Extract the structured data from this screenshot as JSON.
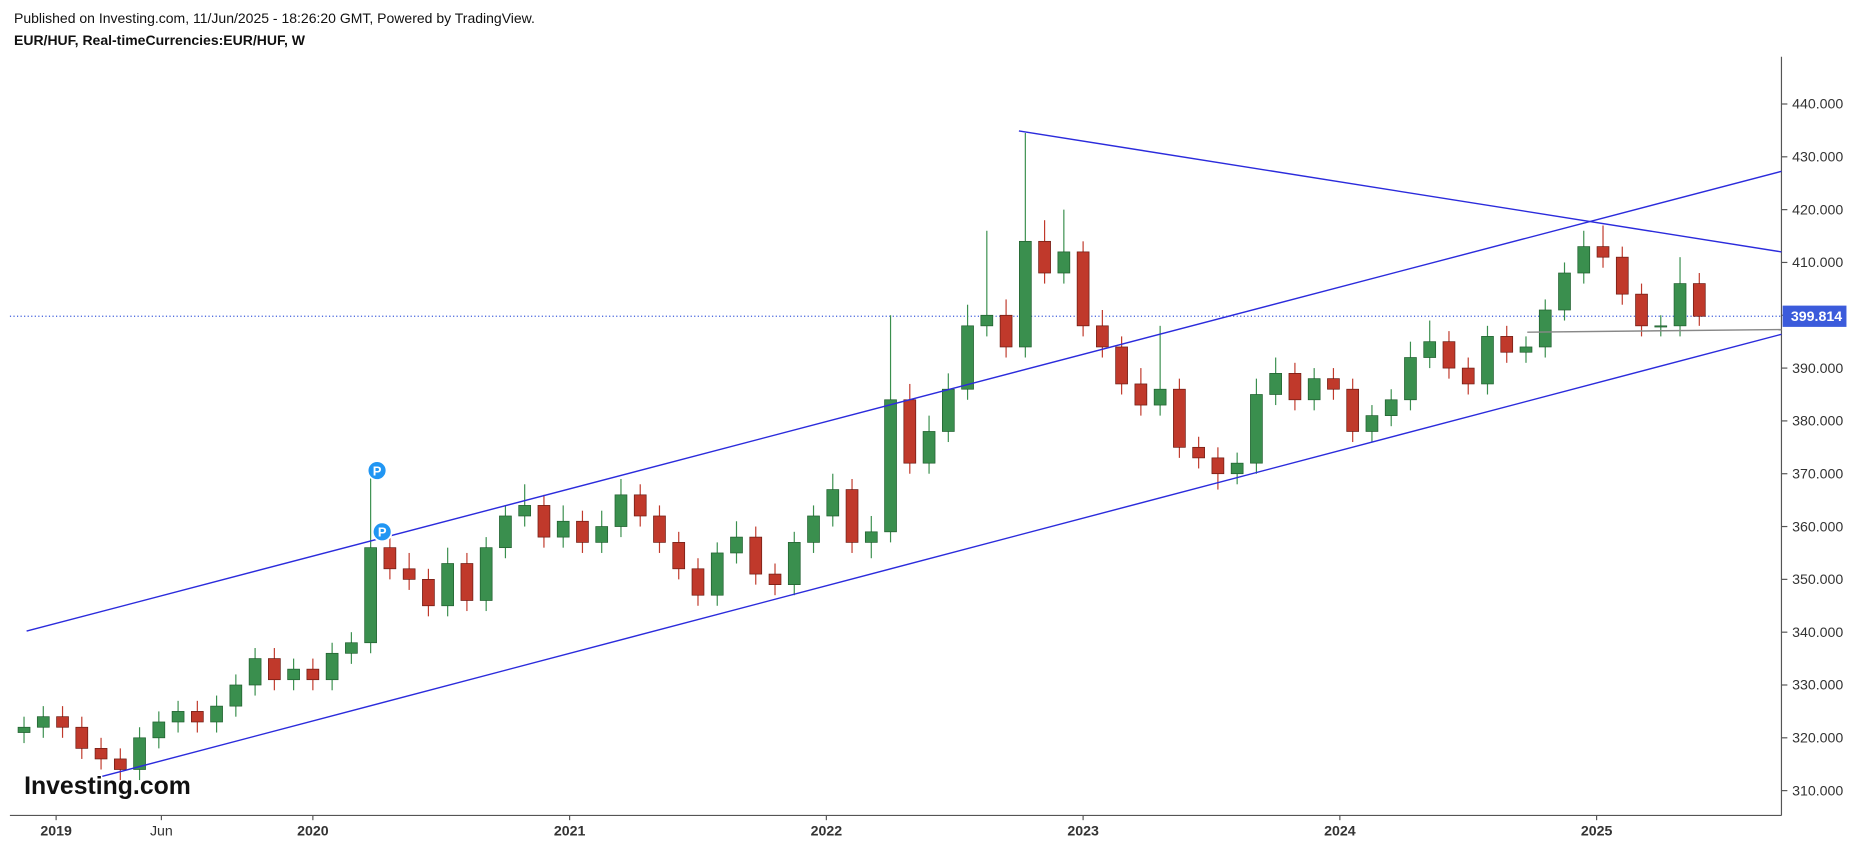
{
  "header": {
    "published": "Published on Investing.com, 11/Jun/2025 - 18:26:20 GMT, Powered by TradingView.",
    "symbol": "EUR/HUF, Real-timeCurrencies:EUR/HUF, W"
  },
  "logo": "Investing.com",
  "chart_data": {
    "type": "candlestick",
    "x": [
      2018.875,
      2018.95,
      2019.025,
      2019.1,
      2019.175,
      2019.25,
      2019.325,
      2019.4,
      2019.475,
      2019.55,
      2019.625,
      2019.7,
      2019.775,
      2019.85,
      2019.925,
      2020.0,
      2020.075,
      2020.15,
      2020.225,
      2020.3,
      2020.375,
      2020.45,
      2020.525,
      2020.6,
      2020.675,
      2020.75,
      2020.825,
      2020.9,
      2020.975,
      2021.05,
      2021.125,
      2021.2,
      2021.275,
      2021.35,
      2021.425,
      2021.5,
      2021.575,
      2021.65,
      2021.725,
      2021.8,
      2021.875,
      2021.95,
      2022.025,
      2022.1,
      2022.175,
      2022.25,
      2022.325,
      2022.4,
      2022.475,
      2022.55,
      2022.625,
      2022.7,
      2022.775,
      2022.85,
      2022.925,
      2023.0,
      2023.075,
      2023.15,
      2023.225,
      2023.3,
      2023.375,
      2023.45,
      2023.525,
      2023.6,
      2023.675,
      2023.75,
      2023.825,
      2023.9,
      2023.975,
      2024.05,
      2024.125,
      2024.2,
      2024.275,
      2024.35,
      2024.425,
      2024.5,
      2024.575,
      2024.65,
      2024.725,
      2024.8,
      2024.875,
      2024.95,
      2025.025,
      2025.1,
      2025.175,
      2025.25,
      2025.325,
      2025.4
    ],
    "open": [
      321,
      322,
      324,
      322,
      318,
      316,
      314,
      320,
      323,
      325,
      323,
      326,
      330,
      335,
      331,
      333,
      331,
      336,
      338,
      356,
      352,
      350,
      345,
      353,
      346,
      356,
      362,
      364,
      358,
      361,
      357,
      360,
      366,
      362,
      357,
      352,
      347,
      355,
      358,
      351,
      349,
      357,
      362,
      367,
      357,
      359,
      384,
      372,
      378,
      386,
      398,
      400,
      394,
      414,
      408,
      412,
      398,
      394,
      387,
      383,
      386,
      375,
      373,
      370,
      372,
      385,
      389,
      384,
      388,
      386,
      378,
      381,
      384,
      392,
      395,
      390,
      387,
      396,
      393,
      394,
      401,
      408,
      413,
      411,
      404,
      398,
      398,
      406
    ],
    "high": [
      324,
      326,
      326,
      324,
      320,
      318,
      322,
      325,
      327,
      327,
      328,
      332,
      337,
      337,
      335,
      335,
      338,
      340,
      370,
      359,
      355,
      352,
      356,
      355,
      358,
      364,
      368,
      366,
      364,
      363,
      363,
      369,
      368,
      364,
      359,
      354,
      357,
      361,
      360,
      353,
      359,
      364,
      370,
      369,
      362,
      400,
      387,
      381,
      389,
      402,
      416,
      403,
      434.5,
      418,
      420,
      414,
      401,
      396,
      390,
      398,
      388,
      377,
      375,
      374,
      388,
      392,
      391,
      390,
      390,
      388,
      383,
      386,
      395,
      399,
      397,
      392,
      398,
      398,
      396,
      403,
      410,
      416,
      417,
      413,
      406,
      400,
      411,
      408
    ],
    "low": [
      319,
      320,
      320,
      316,
      314,
      312,
      312,
      318,
      321,
      321,
      321,
      324,
      328,
      329,
      329,
      329,
      329,
      334,
      336,
      350,
      348,
      343,
      343,
      344,
      344,
      354,
      360,
      356,
      356,
      355,
      355,
      358,
      360,
      355,
      350,
      345,
      345,
      353,
      349,
      347,
      347,
      355,
      360,
      355,
      354,
      357,
      370,
      370,
      376,
      384,
      396,
      392,
      392,
      406,
      406,
      396,
      392,
      385,
      381,
      381,
      373,
      371,
      367,
      368,
      370,
      383,
      382,
      382,
      384,
      376,
      376,
      379,
      382,
      390,
      388,
      385,
      385,
      391,
      391,
      392,
      399,
      406,
      409,
      402,
      396,
      396,
      396,
      398
    ],
    "close": [
      322,
      324,
      322,
      318,
      316,
      314,
      320,
      323,
      325,
      323,
      326,
      330,
      335,
      331,
      333,
      331,
      336,
      338,
      356,
      352,
      350,
      345,
      353,
      346,
      356,
      362,
      364,
      358,
      361,
      357,
      360,
      366,
      362,
      357,
      352,
      347,
      355,
      358,
      351,
      349,
      357,
      362,
      367,
      357,
      359,
      384,
      372,
      378,
      386,
      398,
      400,
      394,
      414,
      408,
      412,
      398,
      394,
      387,
      383,
      386,
      375,
      373,
      370,
      372,
      385,
      389,
      384,
      388,
      386,
      378,
      381,
      384,
      392,
      395,
      390,
      387,
      396,
      393,
      394,
      401,
      408,
      413,
      411,
      404,
      398,
      398,
      406,
      399.814
    ],
    "up_color": "#3a8f4e",
    "down_color": "#c0392b",
    "last_price": 399.814,
    "xlim": [
      2018.82,
      2025.72
    ],
    "ylim": [
      305.3,
      448.95
    ],
    "yticks": [
      {
        "value": 310,
        "label": "310.000"
      },
      {
        "value": 320,
        "label": "320.000"
      },
      {
        "value": 330,
        "label": "330.000"
      },
      {
        "value": 340,
        "label": "340.000"
      },
      {
        "value": 350,
        "label": "350.000"
      },
      {
        "value": 360,
        "label": "360.000"
      },
      {
        "value": 370,
        "label": "370.000"
      },
      {
        "value": 380,
        "label": "380.000"
      },
      {
        "value": 390,
        "label": "390.000"
      },
      {
        "value": 400,
        "label": "400.000"
      },
      {
        "value": 410,
        "label": "410.000"
      },
      {
        "value": 420,
        "label": "420.000"
      },
      {
        "value": 430,
        "label": "430.000"
      },
      {
        "value": 440,
        "label": "440.000"
      }
    ],
    "xticks": [
      {
        "value": 2019,
        "label": "2019"
      },
      {
        "value": 2019.41,
        "label": "Jun"
      },
      {
        "value": 2020,
        "label": "2020"
      },
      {
        "value": 2021,
        "label": "2021"
      },
      {
        "value": 2022,
        "label": "2022"
      },
      {
        "value": 2023,
        "label": "2023"
      },
      {
        "value": 2024,
        "label": "2024"
      },
      {
        "value": 2025,
        "label": "2025"
      }
    ],
    "trendlines": [
      {
        "x": [
          2018.885,
          2025.72
        ],
        "y": [
          340.2,
          427.25
        ],
        "color": "#2b2bdc"
      },
      {
        "x": [
          2019.18,
          2025.72
        ],
        "y": [
          312.7,
          396.4
        ],
        "color": "#2b2bdc"
      },
      {
        "x": [
          2022.75,
          2025.72
        ],
        "y": [
          434.9,
          412.0
        ],
        "color": "#2b2bdc"
      },
      {
        "x": [
          2024.73,
          2025.72
        ],
        "y": [
          396.8,
          397.3
        ],
        "color": "#888888"
      }
    ],
    "markers": [
      {
        "label": "P",
        "x": 2020.25,
        "y": 370.6
      },
      {
        "label": "P",
        "x": 2020.27,
        "y": 359
      }
    ]
  }
}
